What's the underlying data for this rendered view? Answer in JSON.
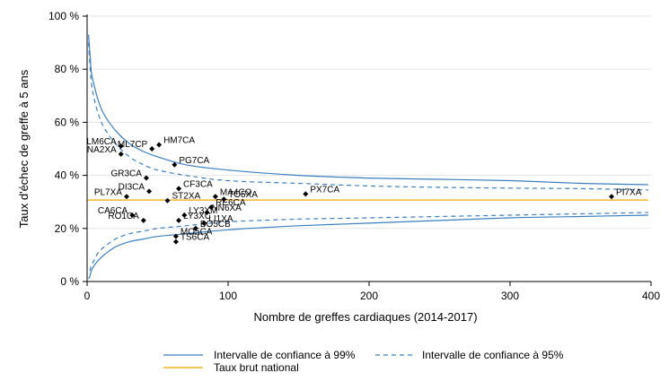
{
  "chart_data": {
    "type": "scatter",
    "title": "",
    "xlabel": "Nombre de greffes cardiaques (2014-2017)",
    "ylabel": "Taux d'échec de greffe à 5 ans",
    "xlim": [
      0,
      400
    ],
    "ylim": [
      0,
      100
    ],
    "x_ticks": [
      0,
      100,
      200,
      300,
      400
    ],
    "y_ticks": [
      0,
      20,
      40,
      60,
      80,
      100
    ],
    "y_tick_labels": [
      "0 %",
      "20 %",
      "40 %",
      "60 %",
      "80 %",
      "100 %"
    ],
    "grid": true,
    "legend_position": "bottom",
    "national_rate": 30.7,
    "points": [
      {
        "label": "HM7CA",
        "x": 51,
        "y": 51.5
      },
      {
        "label": "LM6CA",
        "x": 24,
        "y": 51
      },
      {
        "label": "ML7CP",
        "x": 46,
        "y": 50
      },
      {
        "label": "NA2XA",
        "x": 24,
        "y": 48
      },
      {
        "label": "PG7CA",
        "x": 62,
        "y": 44
      },
      {
        "label": "GR3CA",
        "x": 42,
        "y": 39
      },
      {
        "label": "CF3CA",
        "x": 65,
        "y": 35
      },
      {
        "label": "DI3CA",
        "x": 44,
        "y": 34
      },
      {
        "label": "PX7CA",
        "x": 155,
        "y": 33
      },
      {
        "label": "PI7XA",
        "x": 372,
        "y": 32
      },
      {
        "label": "MA4CO",
        "x": 91,
        "y": 32
      },
      {
        "label": "PL7XA",
        "x": 28,
        "y": 32
      },
      {
        "label": "TO5XA",
        "x": 97,
        "y": 31
      },
      {
        "label": "ST2XA",
        "x": 57,
        "y": 30.5
      },
      {
        "label": "RE6CA",
        "x": 88,
        "y": 28
      },
      {
        "label": "CA6CA",
        "x": 32,
        "y": 25
      },
      {
        "label": "NN6XA",
        "x": 85,
        "y": 26
      },
      {
        "label": "LY3XM",
        "x": 69,
        "y": 25
      },
      {
        "label": "LI1XA",
        "x": 83,
        "y": 22
      },
      {
        "label": "RO1CA",
        "x": 40,
        "y": 23
      },
      {
        "label": "LY3XC",
        "x": 65,
        "y": 23
      },
      {
        "label": "BO5CB",
        "x": 77,
        "y": 20
      },
      {
        "label": "MO5CA",
        "x": 63,
        "y": 17
      },
      {
        "label": "TS6CA",
        "x": 63,
        "y": 15
      }
    ],
    "ci_99_upper": [
      [
        1,
        93
      ],
      [
        2,
        86
      ],
      [
        3,
        79
      ],
      [
        5,
        74
      ],
      [
        8,
        68
      ],
      [
        12,
        63
      ],
      [
        20,
        57
      ],
      [
        30,
        52
      ],
      [
        40,
        49
      ],
      [
        50,
        47
      ],
      [
        70,
        44
      ],
      [
        100,
        42
      ],
      [
        150,
        40
      ],
      [
        200,
        39
      ],
      [
        250,
        38.5
      ],
      [
        300,
        38
      ],
      [
        350,
        37
      ],
      [
        398,
        36.5
      ]
    ],
    "ci_99_lower": [
      [
        1,
        1
      ],
      [
        2,
        2
      ],
      [
        3,
        4
      ],
      [
        5,
        6
      ],
      [
        8,
        8
      ],
      [
        12,
        10
      ],
      [
        20,
        13
      ],
      [
        30,
        15
      ],
      [
        40,
        16
      ],
      [
        50,
        17
      ],
      [
        70,
        18
      ],
      [
        100,
        19.5
      ],
      [
        150,
        21
      ],
      [
        200,
        22
      ],
      [
        250,
        23
      ],
      [
        300,
        24
      ],
      [
        350,
        24.5
      ],
      [
        398,
        25
      ]
    ],
    "ci_95_upper": [
      [
        1,
        90
      ],
      [
        2,
        82
      ],
      [
        3,
        75
      ],
      [
        5,
        69
      ],
      [
        8,
        63
      ],
      [
        12,
        58
      ],
      [
        20,
        52
      ],
      [
        30,
        47
      ],
      [
        40,
        44
      ],
      [
        50,
        42
      ],
      [
        70,
        40
      ],
      [
        100,
        38
      ],
      [
        150,
        37
      ],
      [
        200,
        36
      ],
      [
        250,
        35.5
      ],
      [
        300,
        35.2
      ],
      [
        350,
        35
      ],
      [
        398,
        34.5
      ]
    ],
    "ci_95_lower": [
      [
        2,
        4
      ],
      [
        3,
        6
      ],
      [
        5,
        8
      ],
      [
        8,
        11
      ],
      [
        12,
        13
      ],
      [
        20,
        16
      ],
      [
        30,
        18
      ],
      [
        40,
        19
      ],
      [
        50,
        20
      ],
      [
        70,
        21
      ],
      [
        100,
        22.5
      ],
      [
        150,
        23.5
      ],
      [
        200,
        24
      ],
      [
        250,
        24.5
      ],
      [
        300,
        25
      ],
      [
        350,
        25.5
      ],
      [
        398,
        26
      ]
    ],
    "legend": {
      "ci99": "Intervalle de confiance à 99%",
      "ci95": "Intervalle de confiance à 95%",
      "national": "Taux brut national"
    },
    "colors": {
      "ci": "#3a7fc1",
      "national": "#f0b429",
      "points": "#000000",
      "axis": "#000000",
      "grid": "#e5e5e5"
    }
  }
}
